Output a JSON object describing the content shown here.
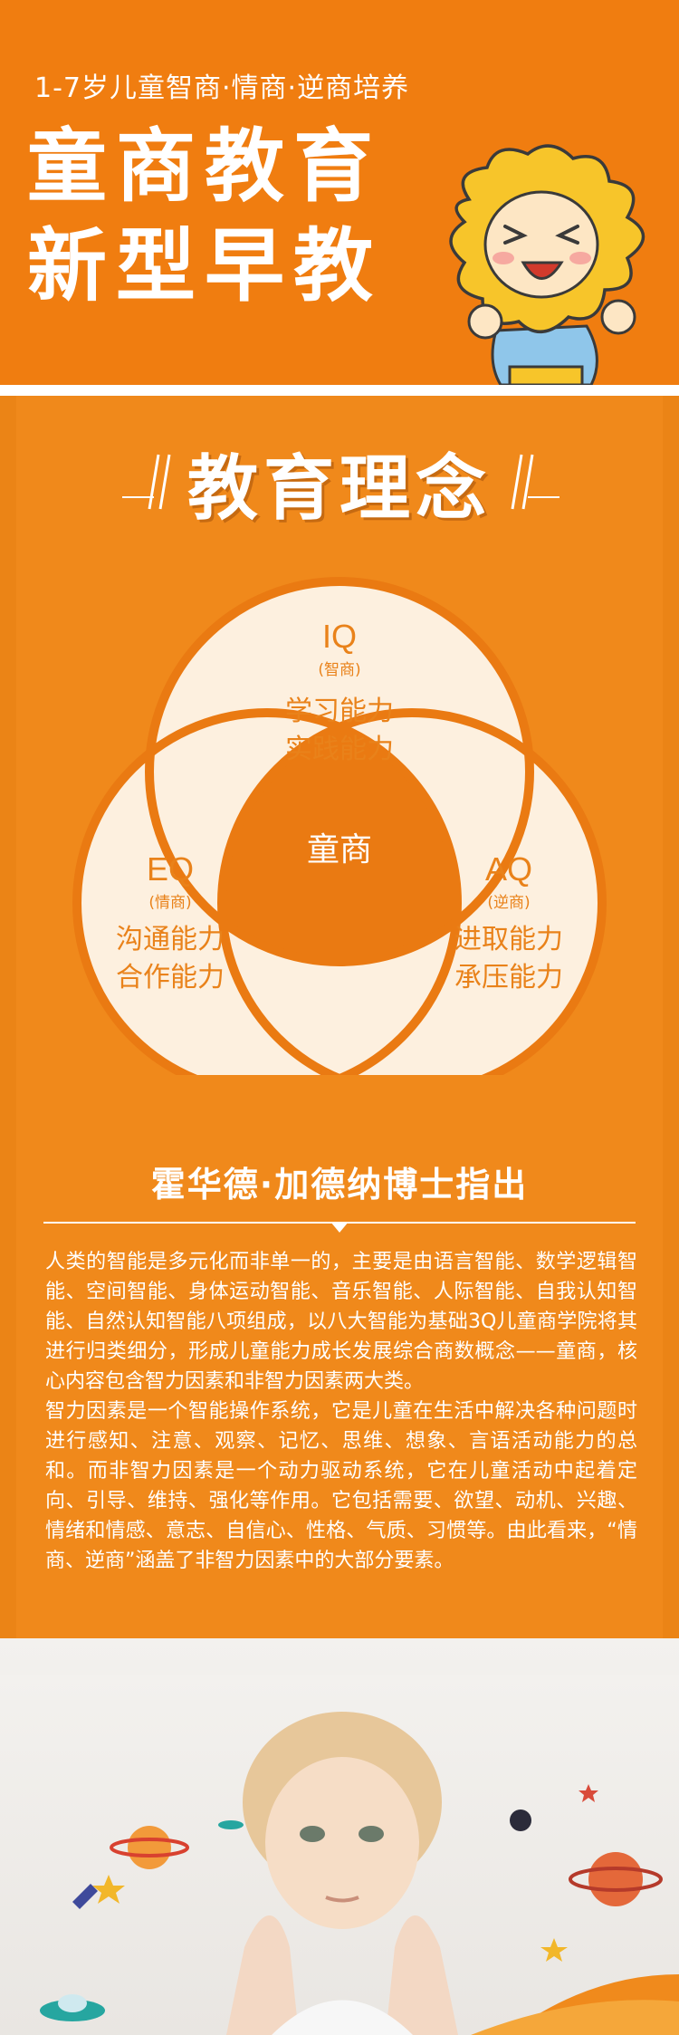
{
  "header": {
    "subtitle": "1-7岁儿童智商·情商·逆商培养",
    "title_line1": "童商教育",
    "title_line2": "新型早教"
  },
  "concept": {
    "heading": "教育理念",
    "venn": {
      "center_label": "童商",
      "iq": {
        "code": "IQ",
        "name": "(智商)",
        "line1": "学习能力",
        "line2": "实践能力"
      },
      "eq": {
        "code": "EQ",
        "name": "(情商)",
        "line1": "沟通能力",
        "line2": "合作能力"
      },
      "aq": {
        "code": "AQ",
        "name": "(逆商)",
        "line1": "进取能力",
        "line2": "承压能力"
      }
    }
  },
  "quote": {
    "heading": "霍华德·加德纳博士指出",
    "paragraph1": "人类的智能是多元化而非单一的，主要是由语言智能、数学逻辑智能、空间智能、身体运动智能、音乐智能、人际智能、自我认知智能、自然认知智能八项组成，以八大智能为基础3Q儿童商学院将其进行归类细分，形成儿童能力成长发展综合商数概念——童商，核心内容包含智力因素和非智力因素两大类。",
    "paragraph2": "智力因素是一个智能操作系统，它是儿童在生活中解决各种问题时进行感知、注意、观察、记忆、思维、想象、言语活动能力的总和。而非智力因素是一个动力驱动系统，它在儿童活动中起着定向、引导、维持、强化等作用。它包括需要、欲望、动机、兴趣、情绪和情感、意志、自信心、性格、气质、习惯等。由此看来，“情商、逆商”涵盖了非智力因素中的大部分要素。"
  },
  "colors": {
    "header_bg": "#f07d10",
    "section_bg": "#f0891b",
    "circle_fill": "#fdf0df",
    "center_fill": "#ea7a12"
  }
}
